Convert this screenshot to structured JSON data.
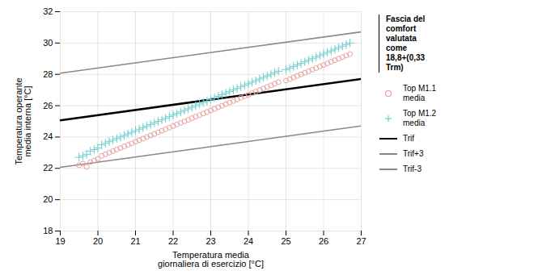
{
  "chart_data": {
    "type": "scatter",
    "ylabel": "Temperatura operante\nmedia interna [°C]",
    "xlabel": "Temperatura media\ngiornaliera di esercizio [°C]",
    "xlim": [
      19,
      27
    ],
    "ylim": [
      18,
      32
    ],
    "xticks": [
      19,
      20,
      21,
      22,
      23,
      24,
      25,
      26,
      27
    ],
    "yticks": [
      18,
      20,
      22,
      24,
      26,
      28,
      30,
      32
    ],
    "grid": true,
    "legend": "right",
    "annotations": [
      "Fascia del\ncomfort\nvalutata\ncome\n18,8+(0,33\nTrm)"
    ],
    "series": [
      {
        "name": "Top M1.1\nmedia",
        "type": "scatter",
        "marker": "circle",
        "color": "#e8a0a0",
        "x": [
          19.5,
          19.6,
          19.7,
          19.8,
          19.9,
          20.0,
          20.1,
          20.2,
          20.3,
          20.4,
          20.5,
          20.6,
          20.7,
          20.8,
          20.9,
          21.0,
          21.1,
          21.2,
          21.3,
          21.4,
          21.5,
          21.6,
          21.7,
          21.8,
          21.9,
          22.0,
          22.1,
          22.2,
          22.3,
          22.4,
          22.5,
          22.6,
          22.7,
          22.8,
          22.9,
          23.0,
          23.1,
          23.2,
          23.3,
          23.4,
          23.5,
          23.6,
          23.7,
          23.8,
          23.9,
          24.0,
          24.1,
          24.2,
          24.3,
          24.4,
          24.5,
          24.6,
          24.7,
          24.8,
          25.0,
          25.1,
          25.2,
          25.3,
          25.4,
          25.5,
          25.6,
          25.7,
          25.8,
          25.9,
          26.0,
          26.1,
          26.2,
          26.3,
          26.4,
          26.5,
          26.6,
          26.7
        ],
        "values": [
          22.2,
          22.3,
          22.1,
          22.4,
          22.5,
          22.6,
          22.8,
          22.9,
          23.0,
          23.1,
          23.2,
          23.3,
          23.4,
          23.5,
          23.6,
          23.7,
          23.8,
          23.9,
          24.0,
          24.1,
          24.2,
          24.3,
          24.4,
          24.5,
          24.6,
          24.7,
          24.8,
          24.9,
          25.0,
          25.1,
          25.2,
          25.3,
          25.4,
          25.5,
          25.6,
          25.7,
          25.8,
          25.9,
          26.0,
          26.1,
          26.2,
          26.3,
          26.4,
          26.5,
          26.6,
          26.7,
          26.8,
          26.9,
          27.0,
          27.1,
          27.2,
          27.3,
          27.4,
          27.5,
          27.6,
          27.7,
          27.8,
          27.9,
          28.0,
          28.1,
          28.2,
          28.3,
          28.4,
          28.5,
          28.6,
          28.7,
          28.8,
          28.9,
          29.0,
          29.1,
          29.2,
          29.3
        ]
      },
      {
        "name": "Top M1.2\nmedia",
        "type": "scatter",
        "marker": "plus",
        "color": "#6ecece",
        "x": [
          19.5,
          19.6,
          19.7,
          19.8,
          19.9,
          20.0,
          20.1,
          20.2,
          20.3,
          20.4,
          20.5,
          20.6,
          20.7,
          20.8,
          20.9,
          21.0,
          21.1,
          21.2,
          21.3,
          21.4,
          21.5,
          21.6,
          21.7,
          21.8,
          21.9,
          22.0,
          22.1,
          22.2,
          22.3,
          22.4,
          22.5,
          22.6,
          22.7,
          22.8,
          22.9,
          23.0,
          23.1,
          23.2,
          23.3,
          23.4,
          23.5,
          23.6,
          23.7,
          23.8,
          23.9,
          24.0,
          24.1,
          24.2,
          24.3,
          24.4,
          24.5,
          24.6,
          24.7,
          24.8,
          25.0,
          25.1,
          25.2,
          25.3,
          25.4,
          25.5,
          25.6,
          25.7,
          25.8,
          25.9,
          26.0,
          26.1,
          26.2,
          26.3,
          26.4,
          26.5,
          26.6,
          26.7
        ],
        "values": [
          22.7,
          22.8,
          22.9,
          23.1,
          23.2,
          23.3,
          23.5,
          23.6,
          23.7,
          23.8,
          23.9,
          24.0,
          24.1,
          24.2,
          24.3,
          24.4,
          24.5,
          24.6,
          24.7,
          24.8,
          24.9,
          25.0,
          25.1,
          25.2,
          25.3,
          25.4,
          25.5,
          25.6,
          25.7,
          25.8,
          25.9,
          26.0,
          26.1,
          26.2,
          26.3,
          26.4,
          26.5,
          26.6,
          26.7,
          26.8,
          26.9,
          27.0,
          27.1,
          27.2,
          27.3,
          27.4,
          27.5,
          27.6,
          27.7,
          27.8,
          27.9,
          28.0,
          28.1,
          28.2,
          28.3,
          28.4,
          28.5,
          28.6,
          28.7,
          28.8,
          28.9,
          29.0,
          29.1,
          29.2,
          29.3,
          29.4,
          29.5,
          29.6,
          29.7,
          29.8,
          29.9,
          30.0
        ]
      },
      {
        "name": "Trif",
        "type": "line",
        "line_style": "solid",
        "color": "#000000",
        "x": [
          19,
          27
        ],
        "values": [
          25.07,
          27.71
        ]
      },
      {
        "name": "Trif+3",
        "type": "line",
        "line_style": "solid",
        "color": "#888888",
        "x": [
          19,
          27
        ],
        "values": [
          28.07,
          30.71
        ]
      },
      {
        "name": "Trif-3",
        "type": "line",
        "line_style": "solid",
        "color": "#888888",
        "x": [
          19,
          27
        ],
        "values": [
          22.07,
          24.71
        ]
      }
    ]
  }
}
